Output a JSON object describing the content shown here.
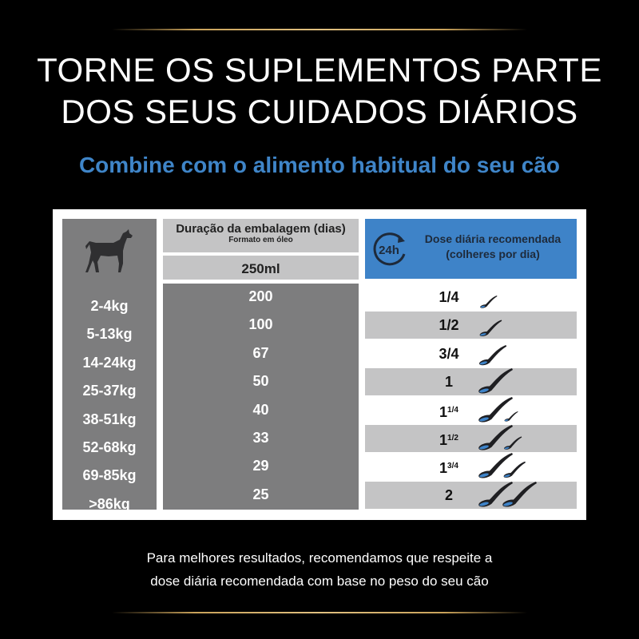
{
  "header": {
    "title_line1": "TORNE OS SUPLEMENTOS PARTE",
    "title_line2": "DOS SEUS CUIDADOS DIÁRIOS",
    "subtitle": "Combine com o alimento habitual do seu cão"
  },
  "table": {
    "duration_header": "Duração da embalagem (dias)",
    "duration_subheader": "Formato em óleo",
    "volume": "250ml",
    "dose_header_line1": "Dose diária recomendada",
    "dose_header_line2": "(colheres por dia)",
    "clock_label": "24h",
    "rows": [
      {
        "weight": "2-4kg",
        "days": "200",
        "dose_whole": "",
        "dose_frac": "1/4",
        "spoons": 0.25
      },
      {
        "weight": "5-13kg",
        "days": "100",
        "dose_whole": "",
        "dose_frac": "1/2",
        "spoons": 0.5
      },
      {
        "weight": "14-24kg",
        "days": "67",
        "dose_whole": "",
        "dose_frac": "3/4",
        "spoons": 0.75
      },
      {
        "weight": "25-37kg",
        "days": "50",
        "dose_whole": "1",
        "dose_frac": "",
        "spoons": 1
      },
      {
        "weight": "38-51kg",
        "days": "40",
        "dose_whole": "1",
        "dose_frac": "1/4",
        "spoons": 1.25
      },
      {
        "weight": "52-68kg",
        "days": "33",
        "dose_whole": "1",
        "dose_frac": "1/2",
        "spoons": 1.5
      },
      {
        "weight": "69-85kg",
        "days": "29",
        "dose_whole": "1",
        "dose_frac": "3/4",
        "spoons": 1.75
      },
      {
        "weight": ">86kg",
        "days": "25",
        "dose_whole": "2",
        "dose_frac": "",
        "spoons": 2
      }
    ]
  },
  "footer": {
    "line1": "Para melhores resultados, recomendamos que respeite a",
    "line2": "dose diária recomendada com base no peso do seu cão"
  },
  "colors": {
    "accent_blue": "#3e83c8",
    "gold": "#c9a25a",
    "dark_gray": "#7d7d7e",
    "light_gray": "#c4c4c5"
  }
}
